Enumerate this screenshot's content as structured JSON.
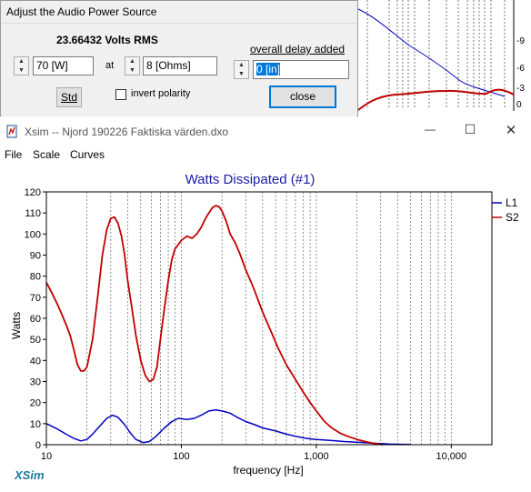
{
  "dialog": {
    "title": "Adjust the Audio Power Source",
    "volts_label": "23.66432 Volts RMS",
    "power_value": "70 [W]",
    "at_label": "at",
    "impedance_value": "8 [Ohms]",
    "delay_label": "overall delay added",
    "delay_value": "0 [in]",
    "std_label": "Std",
    "invert_label": "invert polarity",
    "close_label": "close"
  },
  "bg_graph": {
    "tick_labels": [
      "-9",
      "-6",
      "-3",
      "0"
    ]
  },
  "window": {
    "title": "Xsim -- Njord 190226 Faktiska värden.dxo",
    "minimize": "—",
    "maximize": "☐",
    "close": "✕"
  },
  "menu": [
    "File",
    "Scale",
    "Curves"
  ],
  "brand": "XSim",
  "colors": {
    "L1": "#0000c0",
    "S2": "#c00000",
    "title": "#1a1aa6",
    "brand": "#1a7a9a"
  },
  "chart_data": {
    "type": "line",
    "title": "Watts Dissipated (#1)",
    "xlabel": "frequency [Hz]",
    "ylabel": "Watts",
    "xscale": "log",
    "xlim": [
      10,
      20000
    ],
    "ylim": [
      0,
      120
    ],
    "xticks": [
      10,
      100,
      1000,
      10000
    ],
    "xtick_labels": [
      "10",
      "100",
      "1,000",
      "10,000"
    ],
    "yticks": [
      0,
      10,
      20,
      30,
      40,
      50,
      60,
      70,
      80,
      90,
      100,
      110,
      120
    ],
    "legend": "right",
    "series": [
      {
        "name": "L1",
        "color": "#0000c0",
        "x": [
          10,
          12,
          14,
          16,
          18,
          20,
          22,
          25,
          28,
          31,
          34,
          38,
          42,
          46,
          52,
          58,
          65,
          75,
          85,
          95,
          110,
          125,
          140,
          160,
          180,
          200,
          230,
          260,
          300,
          350,
          400,
          500,
          600,
          700,
          850,
          1000,
          1300,
          1600,
          2000,
          2500,
          3000,
          3500,
          4000,
          5000
        ],
        "y": [
          10,
          7.5,
          5,
          3,
          1.8,
          2.5,
          5,
          9,
          12.5,
          14,
          13,
          9.5,
          5.5,
          2.5,
          1,
          1.5,
          4,
          8,
          11,
          12.5,
          12,
          12.5,
          14,
          16,
          16.5,
          16,
          15,
          13,
          11,
          9.5,
          8,
          6.5,
          5,
          4,
          3,
          2.5,
          2,
          1.5,
          1.2,
          0.8,
          0.5,
          0.3,
          0.2,
          0.1
        ]
      },
      {
        "name": "S2",
        "color": "#c00000",
        "x": [
          10,
          11,
          12,
          13,
          14,
          15,
          16,
          17,
          18,
          19,
          20,
          22,
          24,
          26,
          28,
          30,
          32,
          34,
          36,
          38,
          40,
          43,
          46,
          50,
          54,
          58,
          62,
          66,
          70,
          75,
          80,
          85,
          90,
          95,
          100,
          110,
          120,
          130,
          140,
          150,
          160,
          170,
          180,
          190,
          200,
          215,
          230,
          250,
          270,
          300,
          340,
          400,
          460,
          520,
          600,
          700,
          800,
          900,
          1000,
          1150,
          1300,
          1500,
          1700,
          2000,
          2300,
          2700,
          3100
        ],
        "y": [
          77,
          72,
          67,
          62,
          57,
          52,
          45,
          38,
          35,
          35,
          37,
          50,
          70,
          90,
          102,
          107.5,
          108,
          105,
          99,
          90,
          78,
          65,
          52,
          40,
          33,
          30,
          31,
          37,
          50,
          65,
          78,
          88,
          93,
          95,
          97,
          99,
          98,
          100,
          103,
          107,
          110,
          112.5,
          113.5,
          113,
          111,
          106,
          100,
          96,
          91,
          83,
          75,
          63,
          54,
          46,
          38,
          31,
          25,
          20,
          16,
          11,
          8,
          5.5,
          4,
          2.5,
          1.5,
          0.5,
          0
        ]
      }
    ]
  }
}
